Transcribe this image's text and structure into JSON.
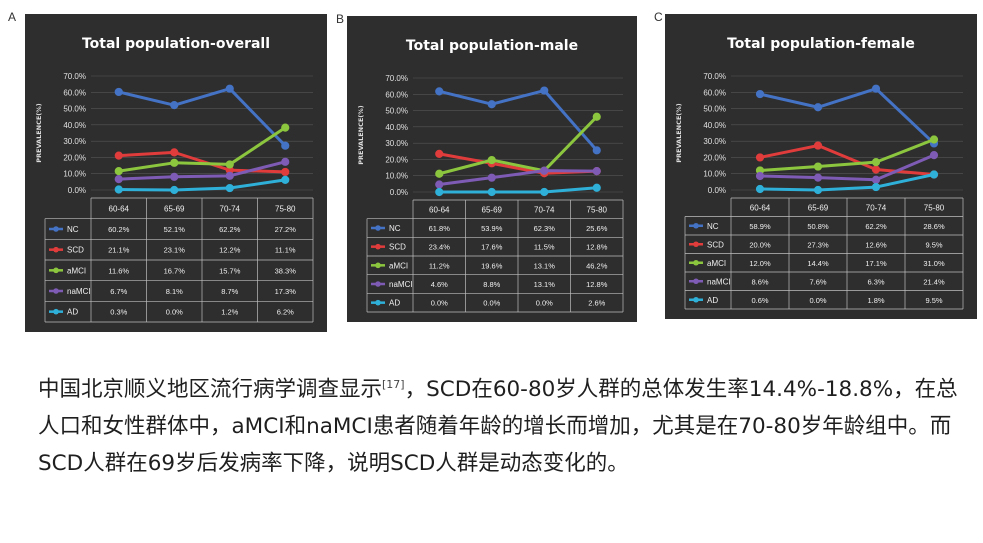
{
  "figure": {
    "panels": [
      {
        "letter": "A",
        "title": "Total population-overall"
      },
      {
        "letter": "B",
        "title": "Total population-male"
      },
      {
        "letter": "C",
        "title": "Total population-female"
      }
    ]
  },
  "chart_data": [
    {
      "type": "line",
      "title": "Total population-overall",
      "ylabel": "PREVALENCE(%)",
      "ylim": [
        0,
        70
      ],
      "yticks": [
        "0.0%",
        "10.0%",
        "20.0%",
        "30.0%",
        "40.0%",
        "50.0%",
        "60.0%",
        "70.0%"
      ],
      "categories": [
        "60-64",
        "65-69",
        "70-74",
        "75-80"
      ],
      "series": [
        {
          "name": "NC",
          "color": "#4472c4",
          "values": [
            60.2,
            52.1,
            62.2,
            27.2
          ],
          "labels": [
            "60.2%",
            "52.1%",
            "62.2%",
            "27.2%"
          ]
        },
        {
          "name": "SCD",
          "color": "#e03c3c",
          "values": [
            21.1,
            23.1,
            12.2,
            11.1
          ],
          "labels": [
            "21.1%",
            "23.1%",
            "12.2%",
            "11.1%"
          ]
        },
        {
          "name": "aMCI",
          "color": "#8cc63f",
          "values": [
            11.6,
            16.7,
            15.7,
            38.3
          ],
          "labels": [
            "11.6%",
            "16.7%",
            "15.7%",
            "38.3%"
          ]
        },
        {
          "name": "naMCI",
          "color": "#7e5bb4",
          "values": [
            6.7,
            8.1,
            8.7,
            17.3
          ],
          "labels": [
            "6.7%",
            "8.1%",
            "8.7%",
            "17.3%"
          ]
        },
        {
          "name": "AD",
          "color": "#2eb0d9",
          "values": [
            0.3,
            0.0,
            1.2,
            6.2
          ],
          "labels": [
            "0.3%",
            "0.0%",
            "1.2%",
            "6.2%"
          ]
        }
      ]
    },
    {
      "type": "line",
      "title": "Total population-male",
      "ylabel": "PREVALENCE(%)",
      "ylim": [
        0,
        70
      ],
      "yticks": [
        "0.0%",
        "10.0%",
        "20.0%",
        "30.0%",
        "40.0%",
        "50.0%",
        "60.0%",
        "70.0%"
      ],
      "categories": [
        "60-64",
        "65-69",
        "70-74",
        "75-80"
      ],
      "series": [
        {
          "name": "NC",
          "color": "#4472c4",
          "values": [
            61.8,
            53.9,
            62.3,
            25.6
          ],
          "labels": [
            "61.8%",
            "53.9%",
            "62.3%",
            "25.6%"
          ]
        },
        {
          "name": "SCD",
          "color": "#e03c3c",
          "values": [
            23.4,
            17.6,
            11.5,
            12.8
          ],
          "labels": [
            "23.4%",
            "17.6%",
            "11.5%",
            "12.8%"
          ]
        },
        {
          "name": "aMCI",
          "color": "#8cc63f",
          "values": [
            11.2,
            19.6,
            13.1,
            46.2
          ],
          "labels": [
            "11.2%",
            "19.6%",
            "13.1%",
            "46.2%"
          ]
        },
        {
          "name": "naMCI",
          "color": "#7e5bb4",
          "values": [
            4.6,
            8.8,
            13.1,
            12.8
          ],
          "labels": [
            "4.6%",
            "8.8%",
            "13.1%",
            "12.8%"
          ]
        },
        {
          "name": "AD",
          "color": "#2eb0d9",
          "values": [
            0.0,
            0.0,
            0.0,
            2.6
          ],
          "labels": [
            "0.0%",
            "0.0%",
            "0.0%",
            "2.6%"
          ]
        }
      ]
    },
    {
      "type": "line",
      "title": "Total population-female",
      "ylabel": "PREVALENCE(%)",
      "ylim": [
        0,
        70
      ],
      "yticks": [
        "0.0%",
        "10.0%",
        "20.0%",
        "30.0%",
        "40.0%",
        "50.0%",
        "60.0%",
        "70.0%"
      ],
      "categories": [
        "60-64",
        "65-69",
        "70-74",
        "75-80"
      ],
      "series": [
        {
          "name": "NC",
          "color": "#4472c4",
          "values": [
            58.9,
            50.8,
            62.2,
            28.6
          ],
          "labels": [
            "58.9%",
            "50.8%",
            "62.2%",
            "28.6%"
          ]
        },
        {
          "name": "SCD",
          "color": "#e03c3c",
          "values": [
            20.0,
            27.3,
            12.6,
            9.5
          ],
          "labels": [
            "20.0%",
            "27.3%",
            "12.6%",
            "9.5%"
          ]
        },
        {
          "name": "aMCI",
          "color": "#8cc63f",
          "values": [
            12.0,
            14.4,
            17.1,
            31.0
          ],
          "labels": [
            "12.0%",
            "14.4%",
            "17.1%",
            "31.0%"
          ]
        },
        {
          "name": "naMCI",
          "color": "#7e5bb4",
          "values": [
            8.6,
            7.6,
            6.3,
            21.4
          ],
          "labels": [
            "8.6%",
            "7.6%",
            "6.3%",
            "21.4%"
          ]
        },
        {
          "name": "AD",
          "color": "#2eb0d9",
          "values": [
            0.6,
            0.0,
            1.8,
            9.5
          ],
          "labels": [
            "0.6%",
            "0.0%",
            "1.8%",
            "9.5%"
          ]
        }
      ]
    }
  ],
  "text": {
    "part1": "中国北京顺义地区流行病学调查显示",
    "citation": "[17]",
    "part2": "，SCD在60-80岁人群的总体发生率14.4%-18.8%，在总人口和女性群体中，aMCI和naMCI患者随着年龄的增长而增加，尤其是在70-80岁年龄组中。而SCD人群在69岁后发病率下降，说明SCD人群是动态变化的。"
  }
}
